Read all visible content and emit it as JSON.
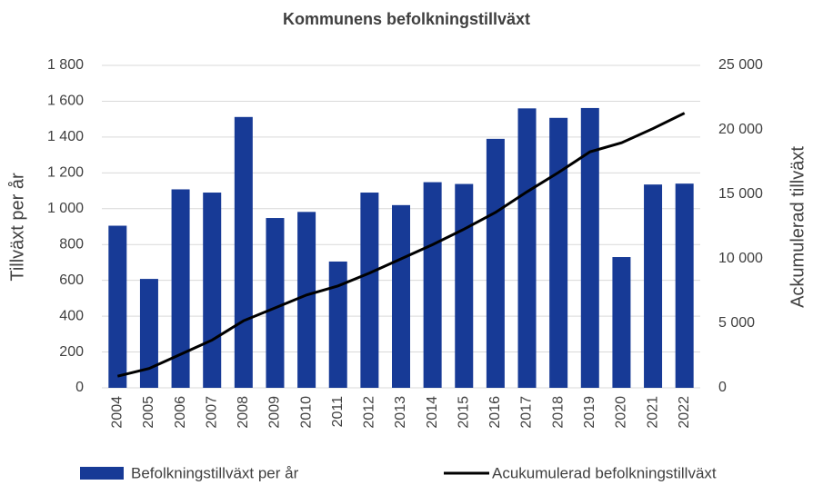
{
  "chart_data": {
    "type": "combo",
    "title": "Kommunens befolkningstillväxt",
    "y_label": "Tillväxt per år",
    "y2_label": "Ackumulerad tillväxt",
    "categories": [
      "2004",
      "2005",
      "2006",
      "2007",
      "2008",
      "2009",
      "2010",
      "2011",
      "2012",
      "2013",
      "2014",
      "2015",
      "2016",
      "2017",
      "2018",
      "2019",
      "2020",
      "2021",
      "2022"
    ],
    "series": [
      {
        "name": "Befolkningstillväxt per år",
        "type": "bar",
        "color": "#173a96",
        "values": [
          905,
          608,
          1108,
          1090,
          1512,
          948,
          982,
          705,
          1090,
          1020,
          1148,
          1138,
          1390,
          1560,
          1507,
          1562,
          730,
          1135,
          1140
        ]
      },
      {
        "name": "Acukumulerad befolkningstillväxt",
        "type": "line",
        "axis": "y2",
        "color": "#000000",
        "values": [
          900,
          1500,
          2600,
          3700,
          5200,
          6200,
          7200,
          7900,
          8900,
          10000,
          11100,
          12300,
          13600,
          15200,
          16700,
          18300,
          19000,
          20100,
          21300
        ]
      }
    ],
    "ylim": [
      0,
      1800
    ],
    "yticks": [
      0,
      200,
      400,
      600,
      800,
      {
        "value": 1000,
        "label": "1 000"
      },
      {
        "value": 1200,
        "label": "1 200"
      },
      {
        "value": 1400,
        "label": "1 400"
      },
      {
        "value": 1600,
        "label": "1 600"
      },
      {
        "value": 1800,
        "label": "1 800"
      }
    ],
    "y2lim": [
      0,
      25000
    ],
    "y2ticks": [
      0,
      {
        "value": 5000,
        "label": "5 000"
      },
      {
        "value": 10000,
        "label": "10 000"
      },
      {
        "value": 15000,
        "label": "15 000"
      },
      {
        "value": 20000,
        "label": "20 000"
      },
      {
        "value": 25000,
        "label": "25 000"
      }
    ],
    "grid": true,
    "legend": "bottom"
  }
}
